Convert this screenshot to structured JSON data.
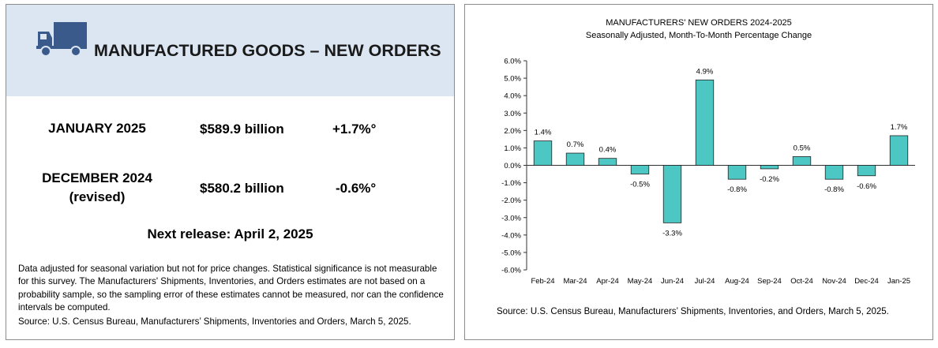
{
  "left": {
    "icon": "truck-icon",
    "headline": "MANUFACTURED GOODS – NEW ORDERS",
    "rows": [
      {
        "period_line1": "JANUARY 2025",
        "period_line2": "",
        "amount": "$589.9 billion",
        "change": "+1.7%°"
      },
      {
        "period_line1": "DECEMBER 2024",
        "period_line2": "(revised)",
        "amount": "$580.2 billion",
        "change": "-0.6%°"
      }
    ],
    "next_release": "Next release: April 2, 2025",
    "notes": "Data adjusted for seasonal variation but not for price changes. Statistical significance is not measurable for this survey.  The Manufacturers' Shipments, Inventories, and Orders estimates are not based on a probability sample, so the sampling error of these estimates cannot be measured, nor can the confidence intervals be computed.",
    "source": "Source: U.S. Census Bureau, Manufacturers’ Shipments, Inventories and Orders, March 5, 2025."
  },
  "colors": {
    "header_bg": "#dce6f2",
    "icon": "#3b5a8c",
    "bar": "#4cc7c4",
    "bar_stroke": "#222222"
  },
  "chart_data": {
    "type": "bar",
    "title": "MANUFACTURERS' NEW ORDERS 2024-2025",
    "subtitle": "Seasonally Adjusted,  Month-To-Month Percentage Change",
    "categories": [
      "Feb-24",
      "Mar-24",
      "Apr-24",
      "May-24",
      "Jun-24",
      "Jul-24",
      "Aug-24",
      "Sep-24",
      "Oct-24",
      "Nov-24",
      "Dec-24",
      "Jan-25"
    ],
    "values": [
      1.4,
      0.7,
      0.4,
      -0.5,
      -3.3,
      4.9,
      -0.8,
      -0.2,
      0.5,
      -0.8,
      -0.6,
      1.7
    ],
    "data_labels": [
      "1.4%",
      "0.7%",
      "0.4%",
      "-0.5%",
      "-3.3%",
      "4.9%",
      "-0.8%",
      "-0.2%",
      "0.5%",
      "-0.8%",
      "-0.6%",
      "1.7%"
    ],
    "y_ticks": [
      6,
      5,
      4,
      3,
      2,
      1,
      0,
      -1,
      -2,
      -3,
      -4,
      -5,
      -6
    ],
    "y_tick_labels": [
      "6.0%",
      "5.0%",
      "4.0%",
      "3.0%",
      "2.0%",
      "1.0%",
      "0.0%",
      "-1.0%",
      "-2.0%",
      "-3.0%",
      "-4.0%",
      "-5.0%",
      "-6.0%"
    ],
    "ylim": [
      -6,
      6
    ],
    "xlabel": "",
    "ylabel": "",
    "grid": false,
    "legend": "none",
    "source": "Source: U.S. Census Bureau, Manufacturers’ Shipments, Inventories, and Orders, March 5, 2025."
  }
}
